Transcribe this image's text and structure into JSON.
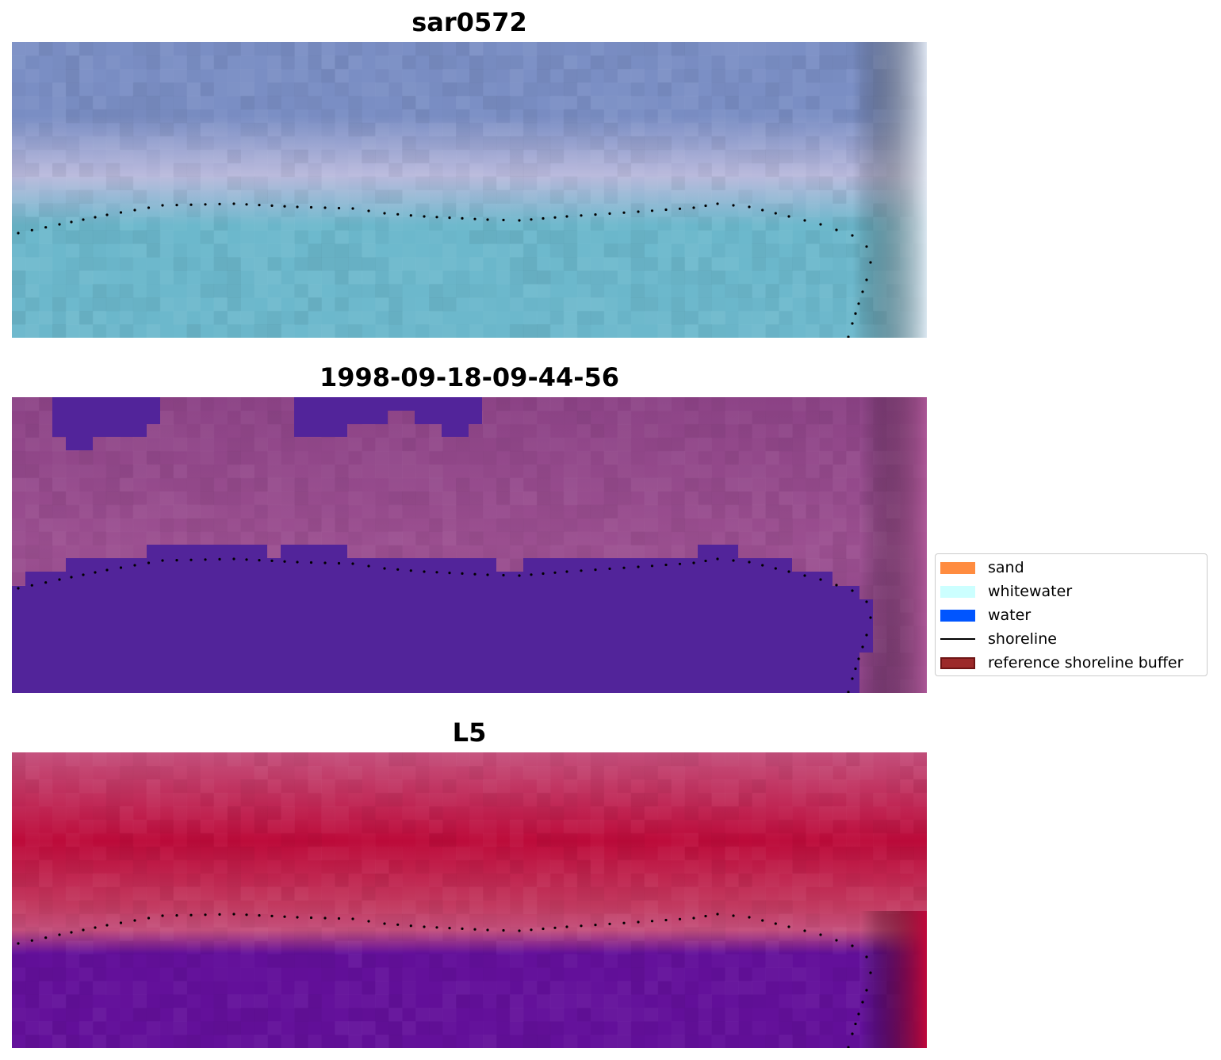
{
  "panels": [
    {
      "title": "sar0572",
      "kind": "image",
      "palette": {
        "top": "#7a8ec4",
        "mid": "#b9b9dc",
        "water": "#6cb8cc",
        "edge": "#e6ecf4"
      }
    },
    {
      "title": "1998-09-18-09-44-56",
      "kind": "classified",
      "palette": {
        "land": "#8c4386",
        "land_light": "#9b4f90",
        "water": "#52249a",
        "edge": "#b35a9a"
      }
    },
    {
      "title": "L5",
      "kind": "index",
      "palette": {
        "top": "#c4507c",
        "band": "#bd0b3a",
        "mid": "#c23a60",
        "water": "#63109a",
        "edge": "#c0083c"
      }
    }
  ],
  "legend": {
    "items": [
      {
        "label": "sand",
        "type": "patch",
        "color": "#ff8c40"
      },
      {
        "label": "whitewater",
        "type": "patch",
        "color": "#ccffff"
      },
      {
        "label": "water",
        "type": "patch",
        "color": "#0055ff"
      },
      {
        "label": "shoreline",
        "type": "line",
        "color": "#000000"
      },
      {
        "label": "reference shoreline buffer",
        "type": "patch",
        "color": "#9c2a2a",
        "border": "#6e1414"
      }
    ]
  },
  "shoreline_color": "#000000"
}
